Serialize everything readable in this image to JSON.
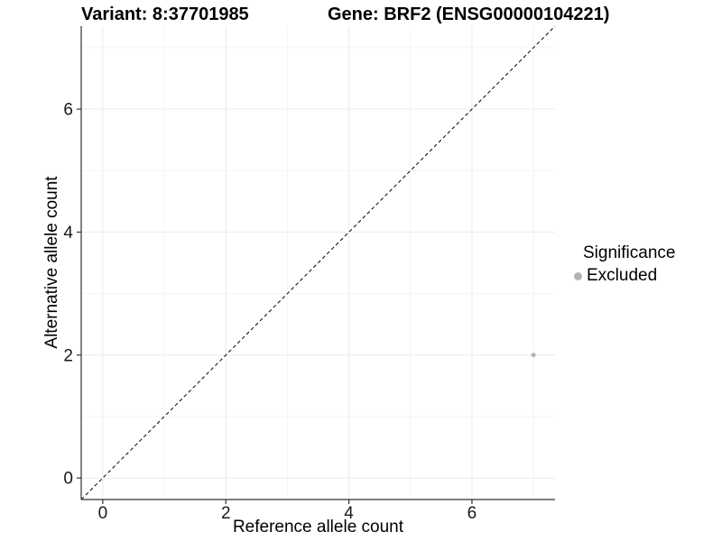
{
  "titles": {
    "variant": "Variant: 8:37701985",
    "gene": "Gene: BRF2 (ENSG00000104221)"
  },
  "legend": {
    "title": "Significance",
    "items": [
      {
        "label": "Excluded",
        "color": "#b4b4b4"
      }
    ]
  },
  "colors": {
    "background": "#ffffff",
    "grid_major": "#ebebeb",
    "grid_minor": "#f5f5f5",
    "axis_line": "#333333",
    "tick_mark": "#333333",
    "tick_label": "#1a1a1a",
    "identity_line": "#000000",
    "point": "#b4b4b4"
  },
  "chart_data": {
    "type": "scatter",
    "title": "Variant: 8:37701985 — Gene: BRF2 (ENSG00000104221)",
    "xlabel": "Reference allele count",
    "ylabel": "Alternative allele count",
    "xlim": [
      -0.35,
      7.35
    ],
    "ylim": [
      -0.35,
      7.35
    ],
    "x_ticks": [
      0,
      2,
      4,
      6
    ],
    "y_ticks": [
      0,
      2,
      4,
      6
    ],
    "x_minor_ticks": [
      1,
      3,
      5,
      7
    ],
    "y_minor_ticks": [
      1,
      3,
      5,
      7
    ],
    "grid": true,
    "legend_position": "right",
    "legend_title": "Significance",
    "series": [
      {
        "name": "Excluded",
        "color": "#b4b4b4",
        "points": [
          {
            "x": 7,
            "y": 2
          }
        ]
      }
    ],
    "reference_line": {
      "type": "identity",
      "slope": 1,
      "intercept": 0,
      "style": "dashed",
      "color": "#000000"
    }
  }
}
